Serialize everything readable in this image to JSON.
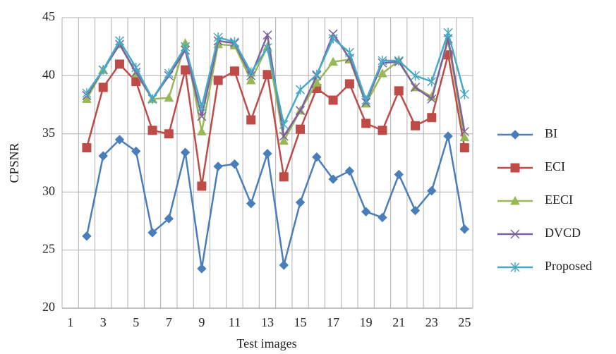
{
  "chart_data": {
    "type": "line",
    "x_label": "Test images",
    "y_label": "CPSNR",
    "categories": [
      "1",
      null,
      "3",
      null,
      "5",
      null,
      "7",
      null,
      "9",
      null,
      "11",
      null,
      "13",
      null,
      "15",
      null,
      "17",
      null,
      "19",
      null,
      "21",
      null,
      "23",
      null,
      "25"
    ],
    "ylim": [
      20,
      45
    ],
    "yticks": [
      20,
      25,
      30,
      35,
      40,
      45
    ],
    "grid": true,
    "legend": "right",
    "series": [
      {
        "name": "BI",
        "color": "#4a7ebb",
        "marker": "diamond",
        "values": [
          null,
          26.2,
          33.1,
          34.5,
          33.5,
          26.5,
          27.7,
          33.4,
          23.4,
          32.2,
          32.4,
          29.0,
          33.3,
          23.7,
          29.1,
          33.0,
          31.1,
          31.8,
          28.3,
          27.8,
          31.5,
          28.4,
          30.1,
          34.8,
          26.8
        ]
      },
      {
        "name": "ECI",
        "color": "#be4b48",
        "marker": "square",
        "values": [
          null,
          33.8,
          39.0,
          41.0,
          39.5,
          35.3,
          35.0,
          40.5,
          30.5,
          39.6,
          40.4,
          36.2,
          40.1,
          31.3,
          35.4,
          38.9,
          37.9,
          39.3,
          35.9,
          35.3,
          38.7,
          35.7,
          36.4,
          41.8,
          33.8
        ]
      },
      {
        "name": "EECI",
        "color": "#98b954",
        "marker": "triangle",
        "values": [
          null,
          38.0,
          40.5,
          42.7,
          40.2,
          38.0,
          38.1,
          42.8,
          35.2,
          42.7,
          42.6,
          39.6,
          42.5,
          34.4,
          37.0,
          39.4,
          41.2,
          41.4,
          37.6,
          40.2,
          41.3,
          39.0,
          38.2,
          43.0,
          34.7
        ]
      },
      {
        "name": "DVCD",
        "color": "#7d60a0",
        "marker": "x",
        "values": [
          null,
          38.3,
          40.5,
          42.7,
          40.3,
          38.0,
          40.0,
          42.2,
          36.5,
          43.0,
          42.8,
          40.0,
          43.5,
          34.8,
          37.0,
          40.0,
          43.6,
          41.5,
          37.7,
          41.1,
          41.2,
          39.0,
          38.0,
          43.2,
          35.2
        ]
      },
      {
        "name": "Proposed",
        "color": "#46aac5",
        "marker": "star",
        "values": [
          null,
          38.5,
          40.5,
          43.0,
          40.7,
          38.0,
          40.2,
          42.5,
          37.3,
          43.3,
          42.9,
          40.3,
          42.4,
          35.8,
          38.8,
          40.1,
          43.2,
          42.0,
          37.9,
          41.3,
          41.3,
          40.0,
          39.5,
          43.7,
          38.4
        ]
      }
    ]
  }
}
